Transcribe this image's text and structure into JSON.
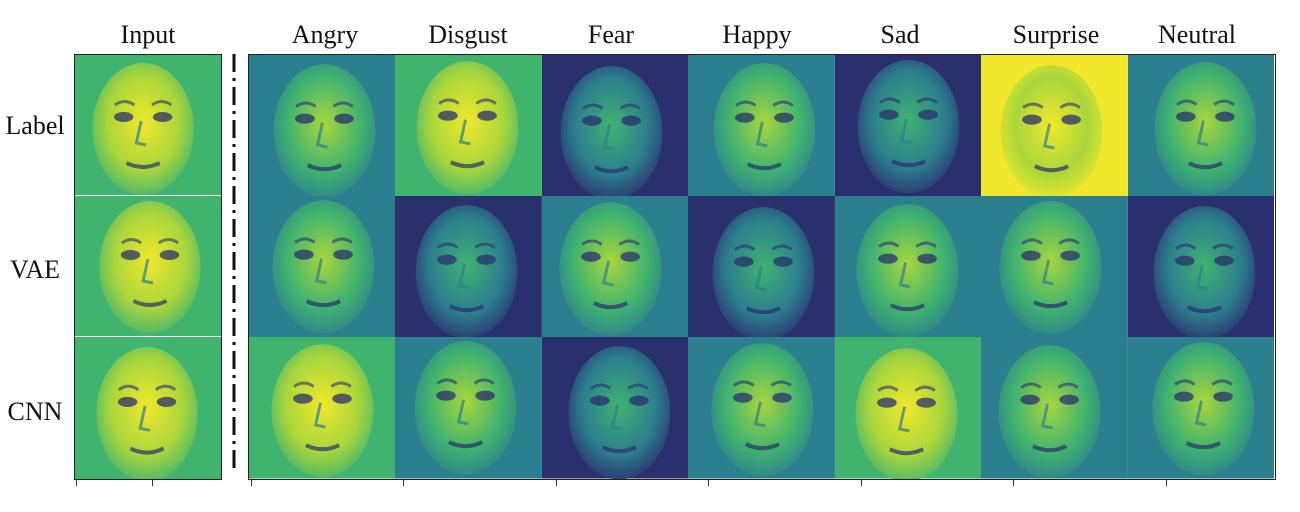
{
  "input_header": "Input",
  "columns": [
    "Angry",
    "Disgust",
    "Fear",
    "Happy",
    "Sad",
    "Surprise",
    "Neutral"
  ],
  "rows": [
    "Label",
    "VAE",
    "CNN"
  ],
  "colors": {
    "dark": "#2a2f6e",
    "teal": "#2c7f8e",
    "green": "#40b36f",
    "lime": "#a9d63c",
    "yellow": "#f1e82b",
    "separator": "#111111"
  },
  "cells": {
    "input": [
      {
        "tone": "light",
        "icon": "face-icon"
      },
      {
        "tone": "light",
        "icon": "face-icon"
      },
      {
        "tone": "light",
        "icon": "face-icon"
      }
    ],
    "grid": [
      [
        "mid",
        "light",
        "dark",
        "mid",
        "dark",
        "bright",
        "mid"
      ],
      [
        "mid",
        "dark",
        "mid",
        "dark",
        "mid",
        "mid",
        "dark"
      ],
      [
        "light",
        "mid",
        "dark",
        "mid",
        "light",
        "mid",
        "mid"
      ]
    ]
  }
}
